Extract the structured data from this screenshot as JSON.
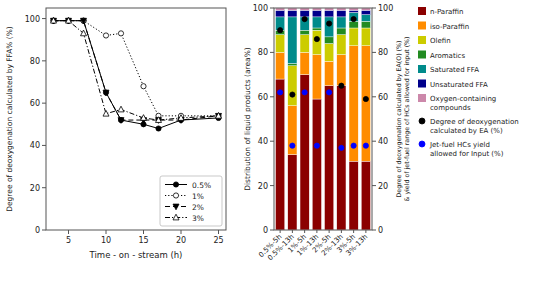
{
  "chart_data": [
    {
      "type": "line",
      "xlabel": "Time - on - stream (h)",
      "ylabel": "Degree of deoxygenation calculated by FFA% (%)",
      "x": [
        3,
        5,
        7,
        10,
        12,
        15,
        17,
        20,
        25
      ],
      "series": [
        {
          "name": "0.5%",
          "color": "black",
          "marker": "circle",
          "line_style": "solid",
          "values": [
            99,
            99,
            99,
            65,
            52,
            50,
            48,
            52,
            53
          ]
        },
        {
          "name": "1%",
          "color": "black",
          "marker": "circle-open",
          "line_style": "dotted",
          "values": [
            99,
            99,
            99,
            92,
            93,
            68,
            54,
            54,
            54
          ]
        },
        {
          "name": "2%",
          "color": "black",
          "marker": "triangle-down",
          "line_style": "dashed",
          "values": [
            99,
            99,
            99,
            65,
            52,
            52,
            52,
            52,
            54
          ]
        },
        {
          "name": "3%",
          "color": "black",
          "marker": "triangle-up-open",
          "line_style": "dashdot",
          "values": [
            99,
            99,
            93,
            55,
            57,
            53,
            52,
            53,
            54
          ]
        }
      ],
      "xlim": [
        2,
        26
      ],
      "ylim": [
        0,
        105
      ],
      "xticks": [
        5,
        10,
        15,
        20,
        25
      ],
      "yticks": [
        0,
        20,
        40,
        60,
        80,
        100
      ],
      "legend": "lower right"
    },
    {
      "type": "bar",
      "stacked": true,
      "ylabel": "Distribution of liquid products (area%)",
      "y2label": "Degree of deoxygenation calculated by EA(O) (%)\n& yield of jet-fuel range of HCs allowed for input (%)",
      "categories": [
        "0.5%-5h",
        "0.5%-13h",
        "1%-5h",
        "1%-13h",
        "2%-5h",
        "2%-13h",
        "3%-5h",
        "3%-13h"
      ],
      "series": [
        {
          "name": "n-Paraffin",
          "color": "#8B0000",
          "values": [
            68,
            34,
            70,
            59,
            65,
            65,
            31,
            31
          ]
        },
        {
          "name": "iso-Paraffin",
          "color": "#FF8C00",
          "values": [
            12,
            22,
            10,
            20,
            11,
            14,
            52,
            52
          ]
        },
        {
          "name": "Olefin",
          "color": "#CCCC00",
          "values": [
            8,
            18,
            8,
            11,
            8,
            9,
            8,
            8
          ]
        },
        {
          "name": "Aromatics",
          "color": "#228B22",
          "values": [
            2,
            1,
            2,
            1,
            3,
            3,
            3,
            3
          ]
        },
        {
          "name": "Saturated FFA",
          "color": "#008B8B",
          "values": [
            6,
            21,
            6,
            5,
            9,
            5,
            4,
            3
          ]
        },
        {
          "name": "Unsaturated FFA",
          "color": "#00008B",
          "values": [
            3,
            3,
            3,
            3,
            3,
            3,
            1,
            2
          ]
        },
        {
          "name": "Oxygen-containing\ncompounds",
          "color": "#CC88AA",
          "values": [
            1,
            1,
            1,
            1,
            1,
            1,
            1,
            1
          ]
        },
        {
          "name": "Degree of deoxygenation\ncalculated by EA (%)",
          "type": "scatter",
          "axis": "y2",
          "color": "black",
          "marker": "circle",
          "values": [
            90,
            61,
            95,
            86,
            93,
            65,
            95,
            59
          ]
        },
        {
          "name": "Jet-fuel HCs yield\nallowed for Input (%)",
          "type": "scatter",
          "axis": "y2",
          "color": "blue",
          "marker": "circle",
          "values": [
            62,
            38,
            62,
            38,
            62,
            37,
            38,
            38
          ]
        }
      ],
      "ylim": [
        0,
        100
      ],
      "yticks": [
        0,
        20,
        40,
        60,
        80,
        100
      ],
      "y2lim": [
        0,
        100
      ],
      "y2ticks": [
        0,
        20,
        40,
        60,
        80,
        100
      ],
      "legend": "right"
    }
  ]
}
